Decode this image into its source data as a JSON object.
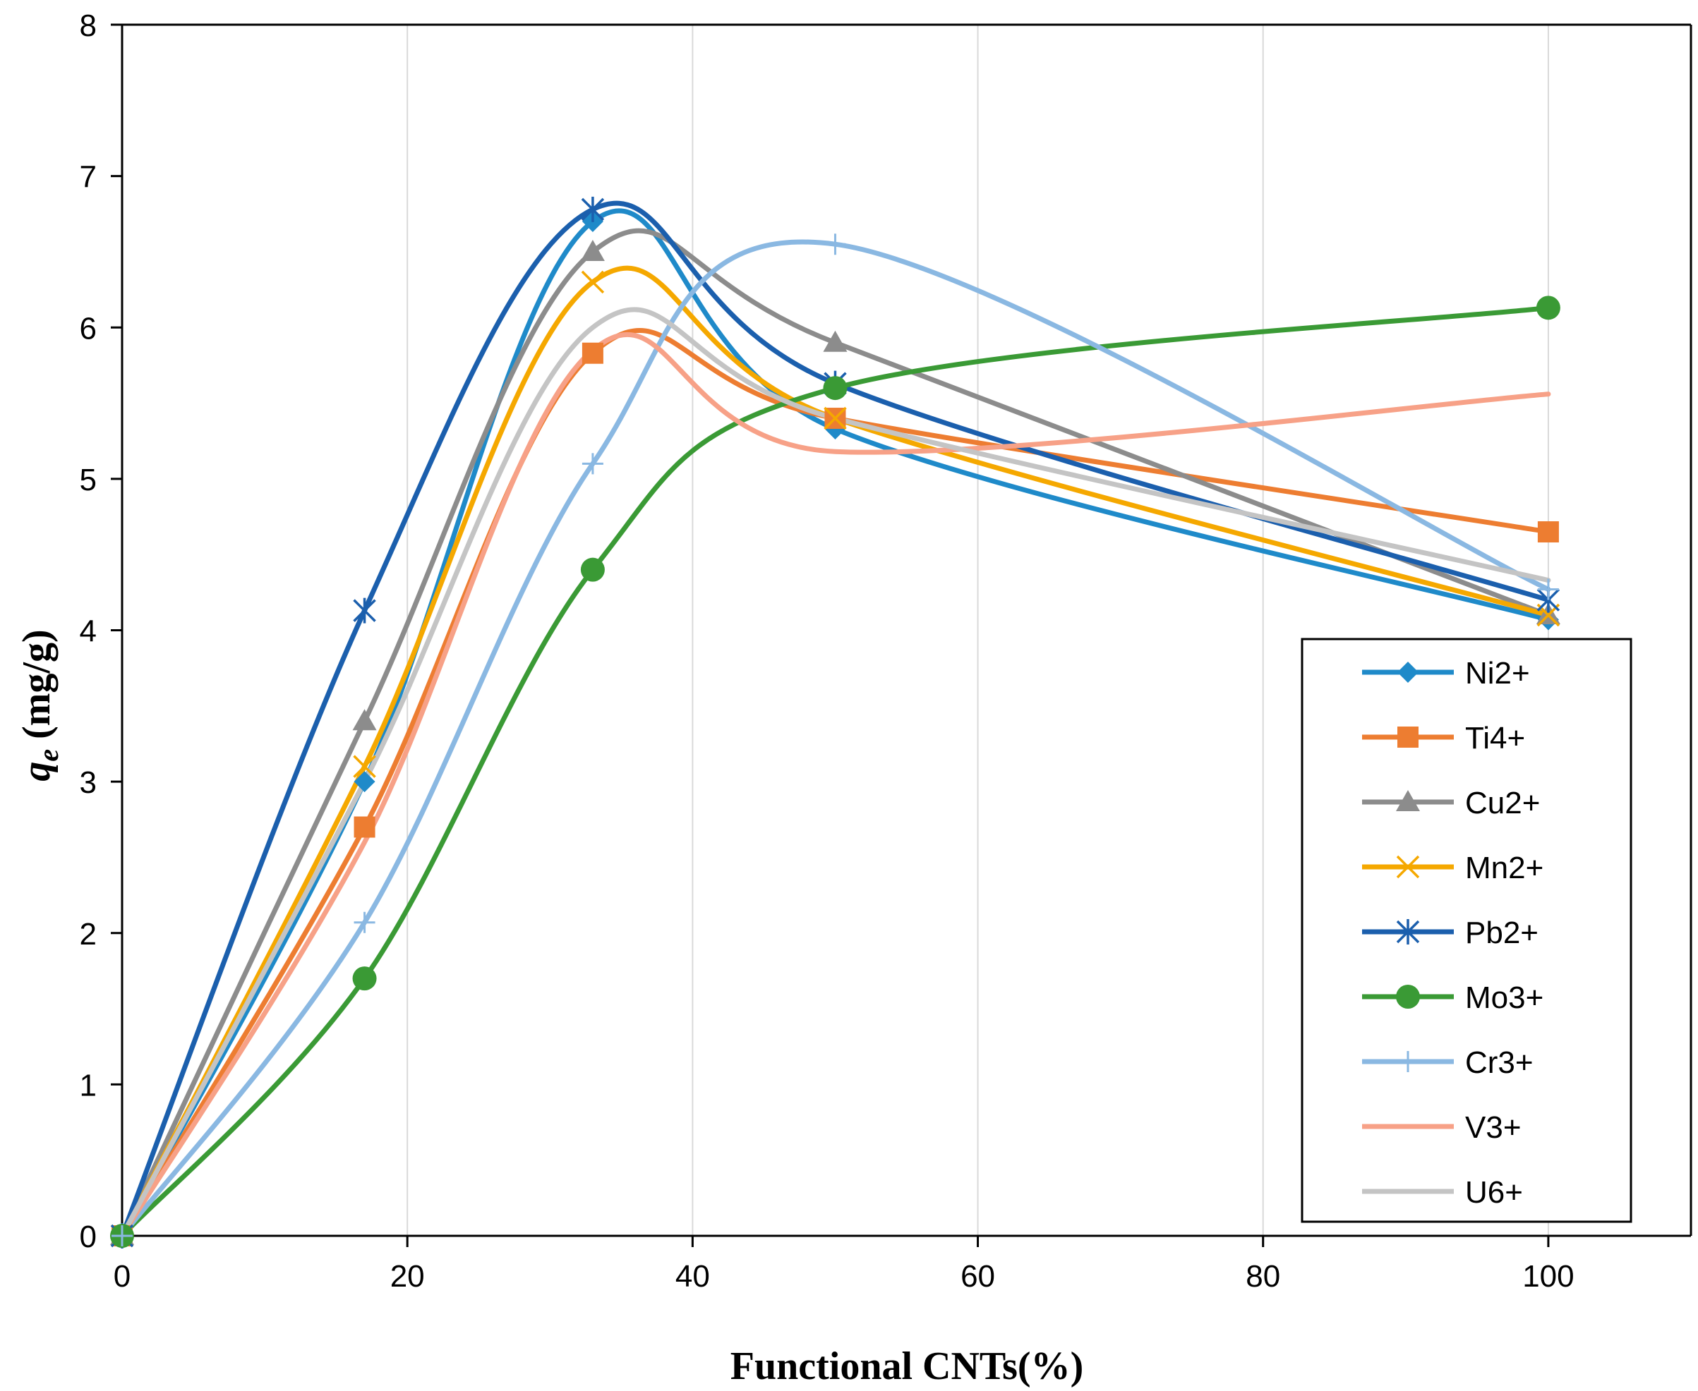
{
  "chart_data": {
    "type": "line",
    "title": "",
    "xlabel": "Functional CNTs(%)",
    "ylabel_main": "q",
    "ylabel_sub": "e",
    "ylabel_units": " (mg/g)",
    "xlim": [
      0,
      110
    ],
    "ylim": [
      0,
      8
    ],
    "xticks": [
      "0",
      "20",
      "40",
      "60",
      "80",
      "100"
    ],
    "yticks": [
      "0",
      "1",
      "2",
      "3",
      "4",
      "5",
      "6",
      "7",
      "8"
    ],
    "x": [
      0,
      17,
      33,
      50,
      100
    ],
    "smoothed": true,
    "legend_position": "right",
    "series": [
      {
        "name": "Ni2+",
        "color": "#1f8ac9",
        "marker": "diamond",
        "values": [
          0,
          3.0,
          6.7,
          5.33,
          4.07
        ]
      },
      {
        "name": "Ti4+",
        "color": "#ed7d31",
        "marker": "square",
        "values": [
          0,
          2.7,
          5.83,
          5.4,
          4.65
        ]
      },
      {
        "name": "Cu2+",
        "color": "#8c8c8c",
        "marker": "triangle",
        "values": [
          0,
          3.4,
          6.5,
          5.9,
          4.1
        ]
      },
      {
        "name": "Mn2+",
        "color": "#f5a800",
        "marker": "x",
        "values": [
          0,
          3.1,
          6.3,
          5.4,
          4.1
        ]
      },
      {
        "name": "Pb2+",
        "color": "#1b5fad",
        "marker": "star",
        "values": [
          0,
          4.13,
          6.78,
          5.63,
          4.2
        ]
      },
      {
        "name": "Mo3+",
        "color": "#3a9a35",
        "marker": "circle",
        "values": [
          0,
          1.7,
          4.4,
          5.6,
          6.13
        ]
      },
      {
        "name": "Cr3+",
        "color": "#8ab8e2",
        "marker": "plus",
        "values": [
          0,
          2.07,
          5.1,
          6.55,
          4.27
        ]
      },
      {
        "name": "V3+",
        "color": "#f7a187",
        "marker": "none",
        "values": [
          0,
          2.6,
          5.85,
          5.18,
          5.56
        ]
      },
      {
        "name": "U6+",
        "color": "#c4c4c4",
        "marker": "none",
        "values": [
          0,
          3.0,
          6.0,
          5.4,
          4.33
        ]
      }
    ]
  }
}
